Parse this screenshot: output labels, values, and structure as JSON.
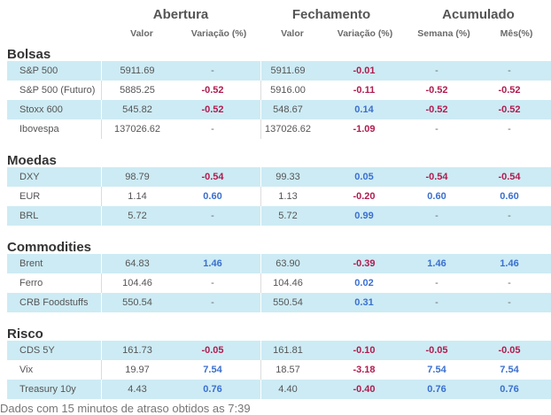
{
  "header": {
    "groups": [
      "Abertura",
      "Fechamento",
      "Acumulado"
    ],
    "columns": [
      "Valor",
      "Variação (%)",
      "Valor",
      "Variação (%)",
      "Semana (%)",
      "Mês(%)"
    ]
  },
  "sections": [
    {
      "title": "Bolsas",
      "rows": [
        {
          "name": "S&P 500",
          "cells": [
            "5911.69",
            "-",
            "5911.69",
            "-0.01",
            "-",
            "-"
          ]
        },
        {
          "name": "S&P 500 (Futuro)",
          "cells": [
            "5885.25",
            "-0.52",
            "5916.00",
            "-0.11",
            "-0.52",
            "-0.52"
          ]
        },
        {
          "name": "Stoxx 600",
          "cells": [
            "545.82",
            "-0.52",
            "548.67",
            "0.14",
            "-0.52",
            "-0.52"
          ]
        },
        {
          "name": "Ibovespa",
          "cells": [
            "137026.62",
            "-",
            "137026.62",
            "-1.09",
            "-",
            "-"
          ]
        }
      ]
    },
    {
      "title": "Moedas",
      "rows": [
        {
          "name": "DXY",
          "cells": [
            "98.79",
            "-0.54",
            "99.33",
            "0.05",
            "-0.54",
            "-0.54"
          ]
        },
        {
          "name": "EUR",
          "cells": [
            "1.14",
            "0.60",
            "1.13",
            "-0.20",
            "0.60",
            "0.60"
          ]
        },
        {
          "name": "BRL",
          "cells": [
            "5.72",
            "-",
            "5.72",
            "0.99",
            "-",
            "-"
          ]
        }
      ]
    },
    {
      "title": "Commodities",
      "rows": [
        {
          "name": "Brent",
          "cells": [
            "64.83",
            "1.46",
            "63.90",
            "-0.39",
            "1.46",
            "1.46"
          ]
        },
        {
          "name": "Ferro",
          "cells": [
            "104.46",
            "-",
            "104.46",
            "0.02",
            "-",
            "-"
          ]
        },
        {
          "name": "CRB Foodstuffs",
          "cells": [
            "550.54",
            "-",
            "550.54",
            "0.31",
            "-",
            "-"
          ]
        }
      ]
    },
    {
      "title": "Risco",
      "rows": [
        {
          "name": "CDS 5Y",
          "cells": [
            "161.73",
            "-0.05",
            "161.81",
            "-0.10",
            "-0.05",
            "-0.05"
          ]
        },
        {
          "name": "Vix",
          "cells": [
            "19.97",
            "7.54",
            "18.57",
            "-3.18",
            "7.54",
            "7.54"
          ]
        },
        {
          "name": "Treasury 10y",
          "cells": [
            "4.43",
            "0.76",
            "4.40",
            "-0.40",
            "0.76",
            "0.76"
          ]
        }
      ]
    }
  ],
  "footer": "Dados com 15 minutos de atraso obtidos as 7:39",
  "colors": {
    "row_alt": "#cdebf4",
    "negative": "#b01c4e",
    "positive": "#3a6fcf"
  }
}
